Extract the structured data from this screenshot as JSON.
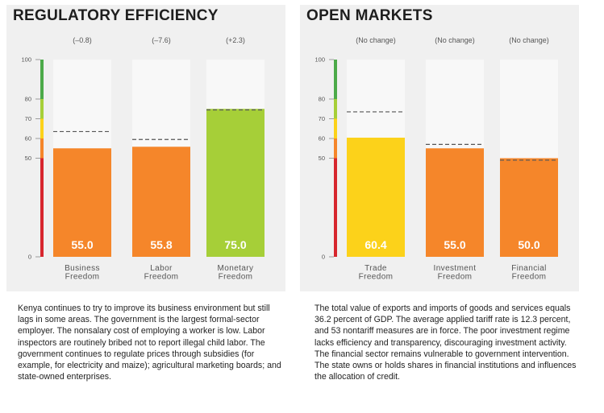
{
  "chart_data": [
    {
      "type": "bar",
      "title": "REGULATORY EFFICIENCY",
      "categories": [
        [
          "Business",
          "Freedom"
        ],
        [
          "Labor",
          "Freedom"
        ],
        [
          "Monetary",
          "Freedom"
        ]
      ],
      "values": [
        55.0,
        55.8,
        75.0
      ],
      "value_labels": [
        "55.0",
        "55.8",
        "75.0"
      ],
      "change_labels": [
        "(–0.8)",
        "(–7.6)",
        "(+2.3)"
      ],
      "reference_values": [
        63.5,
        59.5,
        74.5
      ],
      "bar_colors": [
        "#f5862a",
        "#f5862a",
        "#a6cf38"
      ],
      "ylim": [
        0,
        100
      ],
      "yticks": [
        0,
        50,
        60,
        70,
        80,
        100
      ],
      "grid": false
    },
    {
      "type": "bar",
      "title": "OPEN MARKETS",
      "categories": [
        [
          "Trade",
          "Freedom"
        ],
        [
          "Investment",
          "Freedom"
        ],
        [
          "Financial",
          "Freedom"
        ]
      ],
      "values": [
        60.4,
        55.0,
        50.0
      ],
      "value_labels": [
        "60.4",
        "55.0",
        "50.0"
      ],
      "change_labels": [
        "(No change)",
        "(No change)",
        "(No change)"
      ],
      "reference_values": [
        73.5,
        57.0,
        49.0
      ],
      "bar_colors": [
        "#fcd21a",
        "#f5862a",
        "#f5862a"
      ],
      "ylim": [
        0,
        100
      ],
      "yticks": [
        0,
        50,
        60,
        70,
        80,
        100
      ],
      "grid": false
    }
  ],
  "scale_colors": {
    "repressed": "#d7262e",
    "mostly_unfree": "#f5862a",
    "moderately_free": "#fcd21a",
    "mostly_free": "#a6cf38",
    "free": "#4caa49"
  },
  "colors": {
    "bar_background": "#f8f8f8",
    "value_text": "#ffffff",
    "label_text": "#555555",
    "reference_line": "#555555"
  },
  "descriptions": [
    "Kenya continues to try to improve its business environment but still lags in some areas. The government is the largest formal-sector employer. The nonsalary cost of employing a worker is low. Labor inspectors are routinely bribed not to report illegal child labor. The government continues to regulate prices through subsidies (for example, for electricity and maize); agricultural marketing boards; and state-owned enterprises.",
    "The total value of exports and imports of goods and services equals 36.2 percent of GDP. The average applied tariff rate is 12.3 percent, and 53 nontariff measures are in force. The poor investment regime lacks efficiency and transparency, discouraging investment activity. The financial sector remains vulnerable to government intervention. The state owns or holds shares in financial institutions and influences the allocation of credit."
  ]
}
